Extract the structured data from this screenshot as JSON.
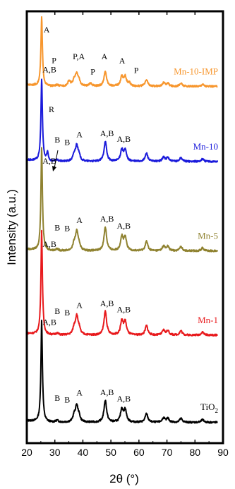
{
  "chart_data": {
    "type": "line",
    "xlabel": "2θ (°)",
    "ylabel": "Intensity (a.u.)",
    "xlim": [
      20,
      90
    ],
    "x_ticks": [
      "20",
      "30",
      "40",
      "50",
      "60",
      "70",
      "80",
      "90"
    ],
    "y_ticks": "none",
    "grid": false,
    "series": [
      {
        "name": "TiO2",
        "label_main": "TiO",
        "label_sub": "2",
        "color": "#000000",
        "baseline_norm": 0.048,
        "peaks": [
          [
            25.3,
            0.235
          ],
          [
            27.4,
            0.0
          ],
          [
            30.8,
            0.004
          ],
          [
            36.9,
            0.014
          ],
          [
            37.8,
            0.035
          ],
          [
            38.6,
            0.012
          ],
          [
            48.0,
            0.051
          ],
          [
            53.9,
            0.03
          ],
          [
            55.1,
            0.028
          ],
          [
            62.7,
            0.02
          ],
          [
            68.8,
            0.01
          ],
          [
            70.3,
            0.009
          ],
          [
            75.0,
            0.009
          ],
          [
            82.7,
            0.006
          ]
        ],
        "annotations": [
          {
            "text": "A,B",
            "x": 25.6,
            "y": 0.274
          },
          {
            "text": "B",
            "x": 29.9,
            "y": 0.098
          },
          {
            "text": "B",
            "x": 33.4,
            "y": 0.094
          },
          {
            "text": "A",
            "x": 37.7,
            "y": 0.11
          },
          {
            "text": "A,B",
            "x": 46.1,
            "y": 0.111
          },
          {
            "text": "A,B",
            "x": 52.1,
            "y": 0.096
          }
        ]
      },
      {
        "name": "Mn-1",
        "label_main": "Mn-1",
        "label_sub": "",
        "color": "#e8191c",
        "baseline_norm": 0.25,
        "peaks": [
          [
            25.3,
            0.24
          ],
          [
            27.4,
            0.0
          ],
          [
            30.8,
            0.004
          ],
          [
            36.9,
            0.015
          ],
          [
            37.8,
            0.04
          ],
          [
            38.6,
            0.013
          ],
          [
            48.0,
            0.055
          ],
          [
            53.9,
            0.032
          ],
          [
            55.1,
            0.03
          ],
          [
            62.7,
            0.022
          ],
          [
            68.8,
            0.011
          ],
          [
            70.3,
            0.01
          ],
          [
            75.0,
            0.01
          ],
          [
            82.7,
            0.007
          ]
        ],
        "annotations": [
          {
            "text": "A,B",
            "x": 25.6,
            "y": 0.454
          },
          {
            "text": "B",
            "x": 29.9,
            "y": 0.299
          },
          {
            "text": "B",
            "x": 33.4,
            "y": 0.296
          },
          {
            "text": "A",
            "x": 37.7,
            "y": 0.313
          },
          {
            "text": "A,B",
            "x": 46.1,
            "y": 0.317
          },
          {
            "text": "A,B",
            "x": 52.1,
            "y": 0.303
          }
        ]
      },
      {
        "name": "Mn-5",
        "label_main": "Mn-5",
        "label_sub": "",
        "color": "#8f8230",
        "baseline_norm": 0.445,
        "peaks": [
          [
            25.3,
            0.24
          ],
          [
            27.4,
            0.0
          ],
          [
            30.8,
            0.004
          ],
          [
            36.9,
            0.015
          ],
          [
            37.8,
            0.04
          ],
          [
            38.6,
            0.013
          ],
          [
            48.0,
            0.055
          ],
          [
            53.9,
            0.032
          ],
          [
            55.1,
            0.03
          ],
          [
            62.7,
            0.022
          ],
          [
            68.8,
            0.011
          ],
          [
            70.3,
            0.01
          ],
          [
            75.0,
            0.01
          ],
          [
            82.7,
            0.007
          ]
        ],
        "annotations": [
          {
            "text": "A,B",
            "x": 25.6,
            "y": 0.647
          },
          {
            "text": "B",
            "x": 29.9,
            "y": 0.493
          },
          {
            "text": "B",
            "x": 33.4,
            "y": 0.491
          },
          {
            "text": "A",
            "x": 37.7,
            "y": 0.51
          },
          {
            "text": "A,B",
            "x": 46.1,
            "y": 0.513
          },
          {
            "text": "A,B",
            "x": 52.1,
            "y": 0.497
          }
        ]
      },
      {
        "name": "Mn-10",
        "label_main": "Mn-10",
        "label_sub": "",
        "color": "#1a1adb",
        "baseline_norm": 0.652,
        "peaks": [
          [
            25.3,
            0.19
          ],
          [
            27.4,
            0.02
          ],
          [
            30.8,
            0.003
          ],
          [
            36.9,
            0.013
          ],
          [
            37.8,
            0.034
          ],
          [
            38.6,
            0.011
          ],
          [
            48.0,
            0.046
          ],
          [
            53.9,
            0.027
          ],
          [
            55.1,
            0.025
          ],
          [
            62.7,
            0.019
          ],
          [
            68.8,
            0.01
          ],
          [
            70.3,
            0.009
          ],
          [
            75.0,
            0.009
          ],
          [
            82.7,
            0.006
          ]
        ],
        "annotations": [
          {
            "text": "A,B",
            "x": 25.6,
            "y": 0.859
          },
          {
            "text": "R",
            "x": 27.8,
            "y": 0.766
          },
          {
            "text": "B",
            "x": 29.9,
            "y": 0.696
          },
          {
            "text": "B",
            "x": 33.4,
            "y": 0.69
          },
          {
            "text": "A",
            "x": 37.7,
            "y": 0.708
          },
          {
            "text": "A,B",
            "x": 46.1,
            "y": 0.711
          },
          {
            "text": "A,B",
            "x": 52.1,
            "y": 0.698
          }
        ]
      },
      {
        "name": "Mn-10-IMP",
        "label_main": "Mn-10-IMP",
        "label_sub": "",
        "color": "#f7962d",
        "baseline_norm": 0.826,
        "peaks": [
          [
            25.3,
            0.16
          ],
          [
            27.4,
            0.0
          ],
          [
            30.8,
            0.003
          ],
          [
            35.1,
            0.012
          ],
          [
            36.9,
            0.012
          ],
          [
            37.8,
            0.027
          ],
          [
            38.6,
            0.01
          ],
          [
            42.8,
            0.007
          ],
          [
            48.0,
            0.034
          ],
          [
            53.9,
            0.022
          ],
          [
            55.1,
            0.021
          ],
          [
            56.6,
            0.007
          ],
          [
            62.7,
            0.015
          ],
          [
            68.8,
            0.008
          ],
          [
            70.3,
            0.007
          ],
          [
            75.0,
            0.007
          ],
          [
            82.7,
            0.005
          ]
        ],
        "annotations": [
          {
            "text": "A",
            "x": 26.0,
            "y": 0.951
          },
          {
            "text": "P",
            "x": 28.9,
            "y": 0.88
          },
          {
            "text": "P,A",
            "x": 36.4,
            "y": 0.889
          },
          {
            "text": "P",
            "x": 42.7,
            "y": 0.854
          },
          {
            "text": "A",
            "x": 46.6,
            "y": 0.889
          },
          {
            "text": "A",
            "x": 52.9,
            "y": 0.879
          },
          {
            "text": "P",
            "x": 58.2,
            "y": 0.857
          }
        ]
      }
    ]
  }
}
